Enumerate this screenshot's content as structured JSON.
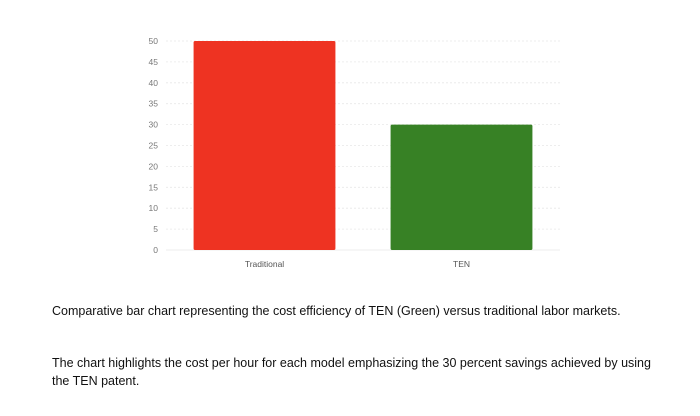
{
  "chart_data": {
    "type": "bar",
    "title": "",
    "xlabel": "",
    "ylabel": "",
    "categories": [
      "Traditional",
      "TEN"
    ],
    "values": [
      50,
      30
    ],
    "bar_colors": [
      "#ee3322",
      "#378125"
    ],
    "ylim": [
      0,
      50
    ],
    "yticks": [
      0,
      5,
      10,
      15,
      20,
      25,
      30,
      35,
      40,
      45,
      50
    ],
    "grid": true,
    "legend": "none"
  },
  "caption": {
    "paragraph_1": "Comparative bar chart representing the cost efficiency of TEN (Green) versus traditional labor markets.",
    "paragraph_2": "The chart highlights the cost per hour for each model emphasizing the 30 percent savings achieved by using the TEN patent."
  }
}
